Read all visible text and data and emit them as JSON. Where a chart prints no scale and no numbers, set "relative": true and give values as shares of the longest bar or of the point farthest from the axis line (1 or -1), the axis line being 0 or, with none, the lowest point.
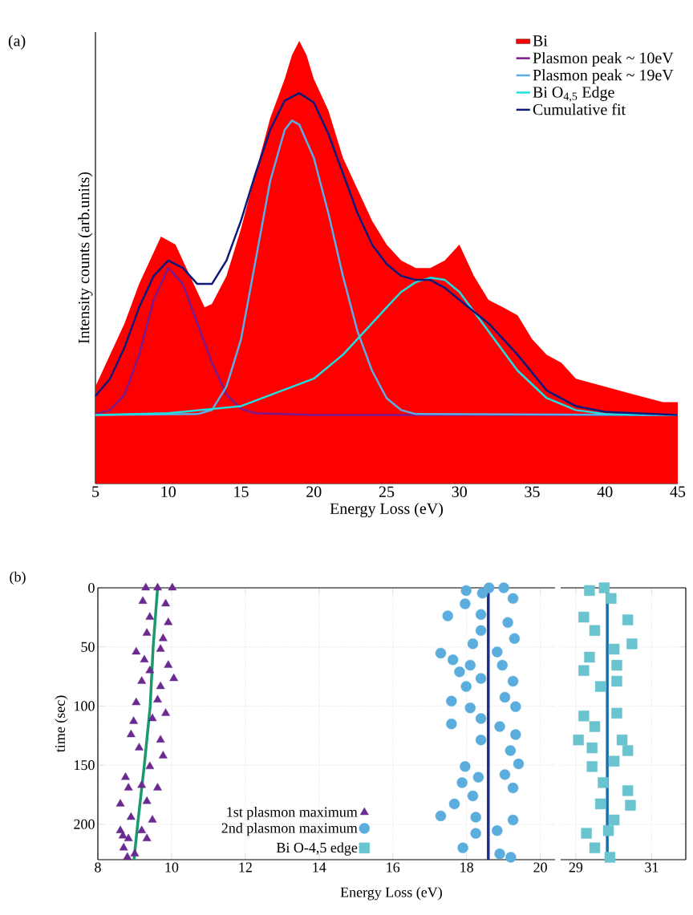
{
  "chart_data": [
    {
      "type": "line",
      "relative": true,
      "xlim": [
        5,
        45
      ],
      "xticks": [
        5,
        10,
        15,
        20,
        25,
        30,
        35,
        40,
        45
      ],
      "xlabel": "Energy Loss (eV)",
      "ylabel": "Intensity counts (arb.units)",
      "legend": "top right",
      "annotations": [
        "(a)"
      ],
      "series": [
        {
          "name": "Bi",
          "type": "area",
          "color": "#ff0000",
          "x": [
            5,
            6,
            7,
            8,
            9,
            9.5,
            10,
            10.5,
            11,
            12,
            12.5,
            13,
            14,
            15,
            16,
            17,
            18,
            18.5,
            19,
            19.5,
            20,
            21,
            22,
            23,
            24,
            25,
            26,
            27,
            28,
            29,
            30,
            31,
            32,
            33,
            34,
            35,
            36,
            37,
            38,
            40,
            42,
            44,
            45
          ],
          "values": [
            0.219,
            0.291,
            0.362,
            0.451,
            0.522,
            0.558,
            0.549,
            0.54,
            0.504,
            0.433,
            0.398,
            0.406,
            0.469,
            0.576,
            0.701,
            0.825,
            0.914,
            0.968,
            1.0,
            0.968,
            0.914,
            0.843,
            0.736,
            0.665,
            0.594,
            0.54,
            0.504,
            0.487,
            0.487,
            0.504,
            0.54,
            0.469,
            0.415,
            0.398,
            0.38,
            0.326,
            0.291,
            0.273,
            0.237,
            0.219,
            0.201,
            0.184,
            0.184
          ]
        },
        {
          "name": "Plasmon peak ~ 10eV",
          "color": "#7b1a8c",
          "x": [
            5,
            6,
            7,
            8,
            9,
            10,
            11,
            12,
            13,
            14,
            15,
            16,
            20,
            45
          ],
          "values": [
            0.157,
            0.166,
            0.201,
            0.291,
            0.415,
            0.487,
            0.451,
            0.362,
            0.273,
            0.201,
            0.169,
            0.159,
            0.155,
            0.155
          ]
        },
        {
          "name": "Plasmon peak ~ 19eV",
          "color": "#5aaee8",
          "x": [
            5,
            12,
            13,
            14,
            15,
            16,
            17,
            18,
            18.5,
            19,
            20,
            21,
            22,
            23,
            24,
            25,
            26,
            27,
            45
          ],
          "values": [
            0.155,
            0.157,
            0.166,
            0.219,
            0.326,
            0.504,
            0.683,
            0.799,
            0.82,
            0.811,
            0.736,
            0.611,
            0.469,
            0.344,
            0.255,
            0.193,
            0.166,
            0.157,
            0.155
          ]
        },
        {
          "name": "Bi O$_{4,5}$ Edge",
          "color": "#1de0e0",
          "x": [
            5,
            10,
            15,
            20,
            22,
            24,
            25,
            26,
            27,
            28,
            29,
            30,
            32,
            34,
            36,
            38,
            40,
            45
          ],
          "values": [
            0.155,
            0.159,
            0.175,
            0.237,
            0.291,
            0.362,
            0.398,
            0.433,
            0.455,
            0.465,
            0.46,
            0.433,
            0.344,
            0.255,
            0.193,
            0.166,
            0.157,
            0.155
          ]
        },
        {
          "name": "Cumulative fit",
          "color": "#0d1a7a",
          "x": [
            5,
            6,
            7,
            8,
            9,
            10,
            11,
            12,
            13,
            14,
            15,
            16,
            17,
            18,
            19,
            20,
            21,
            22,
            23,
            24,
            25,
            26,
            27,
            28,
            29,
            30,
            32,
            34,
            36,
            38,
            40,
            45
          ],
          "values": [
            0.198,
            0.237,
            0.308,
            0.398,
            0.469,
            0.504,
            0.487,
            0.451,
            0.451,
            0.504,
            0.594,
            0.701,
            0.799,
            0.865,
            0.882,
            0.861,
            0.79,
            0.701,
            0.611,
            0.54,
            0.496,
            0.469,
            0.46,
            0.46,
            0.442,
            0.415,
            0.362,
            0.291,
            0.21,
            0.175,
            0.162,
            0.155
          ]
        }
      ]
    },
    {
      "type": "scatter",
      "xlim": [
        8,
        20.4
      ],
      "xticks": [
        8,
        10,
        12,
        14,
        16,
        18,
        20
      ],
      "ylim": [
        230,
        0
      ],
      "yticks": [
        0,
        50,
        100,
        150,
        200
      ],
      "xlabel": "Energy Loss (eV)",
      "ylabel": "time (sec)",
      "grid": true,
      "legend": "bottom",
      "annotations": [
        "(b)"
      ],
      "series": [
        {
          "name": "1st plasmon maximum",
          "color": "#6a2a91",
          "marker": "triangle",
          "x": [
            9.3,
            9.62,
            10.02,
            9.22,
            9.84,
            9.41,
            9.91,
            9.33,
            9.77,
            9.04,
            9.7,
            9.26,
            9.91,
            9.41,
            10.06,
            9.19,
            9.7,
            9.04,
            9.62,
            9.84,
            8.97,
            9.48,
            8.9,
            9.7,
            9.12,
            9.77,
            8.75,
            9.41,
            9.19,
            9.62,
            8.83,
            8.61,
            9.33,
            8.9,
            9.48,
            8.61,
            9.19,
            8.83,
            8.68,
            9.33,
            8.7,
            9.0,
            8.8
          ],
          "values": [
            0,
            0,
            0,
            11.3,
            13.5,
            24.8,
            29.3,
            38.4,
            42.9,
            54.2,
            51.9,
            60.9,
            65.5,
            70,
            76.7,
            79,
            83.5,
            97.1,
            94.8,
            106.1,
            112.9,
            110.6,
            124.2,
            128.7,
            135.4,
            142.2,
            160.3,
            151.2,
            167,
            169.3,
            169.3,
            182.8,
            180.6,
            194.1,
            196.4,
            205.4,
            205.4,
            212.2,
            209.9,
            212.2,
            220,
            225,
            228
          ]
        },
        {
          "name": "2nd plasmon maximum",
          "color": "#5aaddd",
          "marker": "circle",
          "x": [
            17.99,
            18.61,
            19.01,
            17.96,
            18.43,
            19.26,
            17.49,
            18.39,
            19.12,
            18.39,
            19.3,
            17.3,
            17.63,
            18.17,
            18.83,
            17.81,
            18.1,
            18.97,
            19.26,
            17.99,
            18.39,
            17.59,
            18.1,
            19.04,
            19.33,
            17.59,
            18.39,
            18.9,
            19.33,
            18.39,
            19.19,
            17.96,
            19.41,
            17.88,
            18.32,
            19.04,
            19.26,
            17.67,
            18.17,
            17.3,
            18.25,
            19.26,
            18.25,
            18.83,
            17.9,
            18.9,
            19.2
          ],
          "values": [
            2.3,
            0,
            0,
            13.5,
            4.5,
            9,
            23.7,
            22.6,
            29.3,
            36.1,
            42.9,
            55.3,
            60.9,
            47.4,
            54.2,
            71.1,
            65.5,
            65.5,
            79,
            83.5,
            76.7,
            95.9,
            101.6,
            92.6,
            100.5,
            115.1,
            110.6,
            117.4,
            124.2,
            128.7,
            137.7,
            151.2,
            149,
            164.8,
            160.3,
            158,
            169.3,
            182.8,
            176.1,
            193,
            194.1,
            196.4,
            207.7,
            205.4,
            220,
            225,
            228
          ]
        },
        {
          "type": "line",
          "color": "#1a9a6c",
          "marker": "none",
          "x": [
            9.62,
            9.5,
            9.42,
            9.26,
            9.08,
            8.98
          ],
          "values": [
            0,
            50,
            100,
            150,
            200,
            230
          ]
        },
        {
          "type": "line",
          "color": "#1f2e8c",
          "marker": "none",
          "x": [
            18.59,
            18.59
          ],
          "values": [
            0,
            230
          ]
        }
      ]
    },
    {
      "type": "scatter",
      "xlim": [
        28.6,
        31.9
      ],
      "xticks": [
        29,
        31
      ],
      "ylim": [
        230,
        0
      ],
      "yticks": [
        0,
        50,
        100,
        150,
        200
      ],
      "tick_labels": "x",
      "grid": true,
      "legend": "bottom",
      "series": [
        {
          "name": "Bi O-4,5 edge",
          "color": "#6ac4cf",
          "marker": "square",
          "x": [
            29.36,
            29.75,
            29.93,
            29.21,
            30.37,
            29.5,
            30.48,
            29.36,
            30.01,
            29.21,
            30.08,
            29.65,
            30.08,
            29.21,
            30.08,
            29.07,
            29.5,
            30.22,
            30.37,
            29.43,
            29.43,
            30.01,
            30.37,
            29.72,
            30.44,
            29.65,
            30.01,
            29.28,
            29.86,
            29.5,
            29.9
          ],
          "values": [
            2.3,
            0,
            9,
            24.8,
            27.1,
            36.1,
            47.4,
            58.7,
            51.9,
            70,
            65.5,
            83.5,
            79,
            108.4,
            106.1,
            128.7,
            117.4,
            128.7,
            137.7,
            135.4,
            151.2,
            146.7,
            171.6,
            164.8,
            184,
            182.8,
            196.4,
            207.7,
            205.4,
            220,
            228
          ]
        },
        {
          "type": "line",
          "color": "#1a6fa8",
          "marker": "none",
          "x": [
            29.83,
            29.83
          ],
          "values": [
            0,
            230
          ]
        }
      ]
    }
  ]
}
